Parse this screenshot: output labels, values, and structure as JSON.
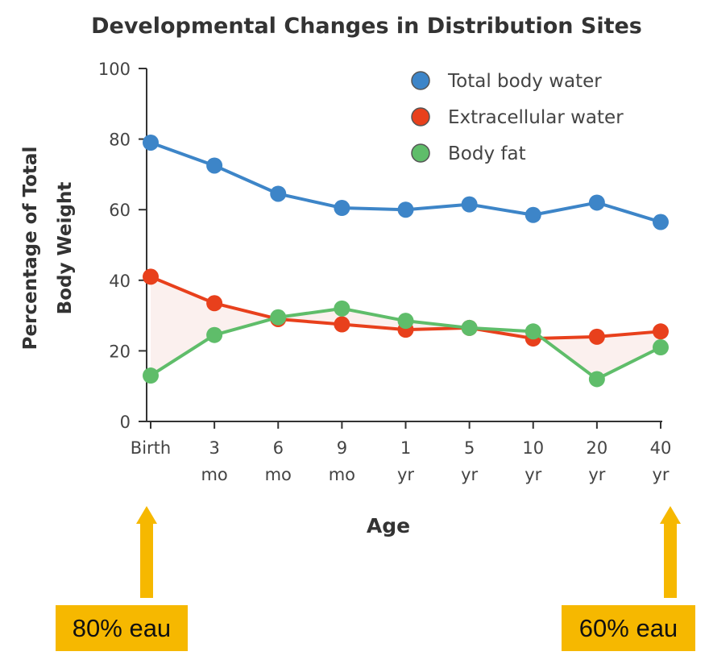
{
  "chart_data": {
    "type": "line",
    "title": "Developmental Changes in Distribution Sites",
    "ylabel_line1": "Percentage of Total",
    "ylabel_line2": "Body Weight",
    "xlabel": "Age",
    "ylim": [
      0,
      100
    ],
    "yticks": [
      "0",
      "20",
      "40",
      "60",
      "80",
      "100"
    ],
    "categories": [
      [
        "Birth",
        ""
      ],
      [
        "3",
        "mo"
      ],
      [
        "6",
        "mo"
      ],
      [
        "9",
        "mo"
      ],
      [
        "1",
        "yr"
      ],
      [
        "5",
        "yr"
      ],
      [
        "10",
        "yr"
      ],
      [
        "20",
        "yr"
      ],
      [
        "40",
        "yr"
      ]
    ],
    "series": [
      {
        "name": "Total body water",
        "color": "#3d85c8",
        "values": [
          79,
          72.5,
          64.5,
          60.5,
          60,
          61.5,
          58.5,
          62,
          56.5
        ]
      },
      {
        "name": "Extracellular water",
        "color": "#e8401c",
        "values": [
          41,
          33.5,
          29,
          27.5,
          26,
          26.5,
          23.5,
          24,
          25.5
        ]
      },
      {
        "name": "Body fat",
        "color": "#5fbd6a",
        "values": [
          13,
          24.5,
          29.5,
          32,
          28.5,
          26.5,
          25.5,
          12,
          21
        ]
      }
    ],
    "legend_position": "top-right",
    "grid": false
  },
  "callouts": {
    "left": "80% eau",
    "right": "60% eau",
    "color": "#f6b800"
  }
}
